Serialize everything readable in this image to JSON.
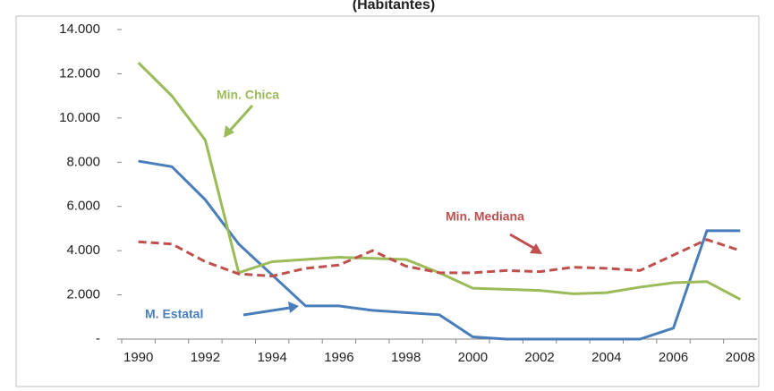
{
  "chart_data": {
    "type": "line",
    "title": "(Habitantes)",
    "categories": [
      "1990",
      null,
      "1992",
      null,
      "1994",
      null,
      "1996",
      null,
      "1998",
      null,
      "2000",
      null,
      "2002",
      null,
      "2004",
      null,
      "2006",
      null,
      "2008"
    ],
    "series": [
      {
        "name": "M. Estatal",
        "color": "#4a7ebb",
        "dashed": false,
        "values": [
          8050,
          7800,
          6300,
          4300,
          2900,
          1500,
          1500,
          1300,
          1200,
          1100,
          100,
          0,
          0,
          0,
          0,
          0,
          500,
          4900,
          4900
        ]
      },
      {
        "name": "Min. Chica",
        "color": "#9bbb59",
        "dashed": false,
        "values": [
          12500,
          11000,
          9000,
          3000,
          3500,
          3600,
          3700,
          3650,
          3600,
          3000,
          2300,
          2250,
          2200,
          2050,
          2100,
          2350,
          2550,
          2600,
          1800
        ]
      },
      {
        "name": "Min. Mediana",
        "color": "#c0504d",
        "dashed": true,
        "values": [
          4400,
          4300,
          3500,
          2950,
          2850,
          3200,
          3350,
          4000,
          3300,
          3000,
          3000,
          3100,
          3050,
          3250,
          3200,
          3100,
          3800,
          4500,
          4000
        ]
      }
    ],
    "ylim": [
      0,
      14000
    ],
    "yticks": [
      {
        "value": 0,
        "label": "-"
      },
      {
        "value": 2000,
        "label": "2.000"
      },
      {
        "value": 4000,
        "label": "4.000"
      },
      {
        "value": 6000,
        "label": "6.000"
      },
      {
        "value": 8000,
        "label": "8.000"
      },
      {
        "value": 10000,
        "label": "10.000"
      },
      {
        "value": 12000,
        "label": "12.000"
      },
      {
        "value": 14000,
        "label": "14.000"
      }
    ],
    "grid": false
  }
}
